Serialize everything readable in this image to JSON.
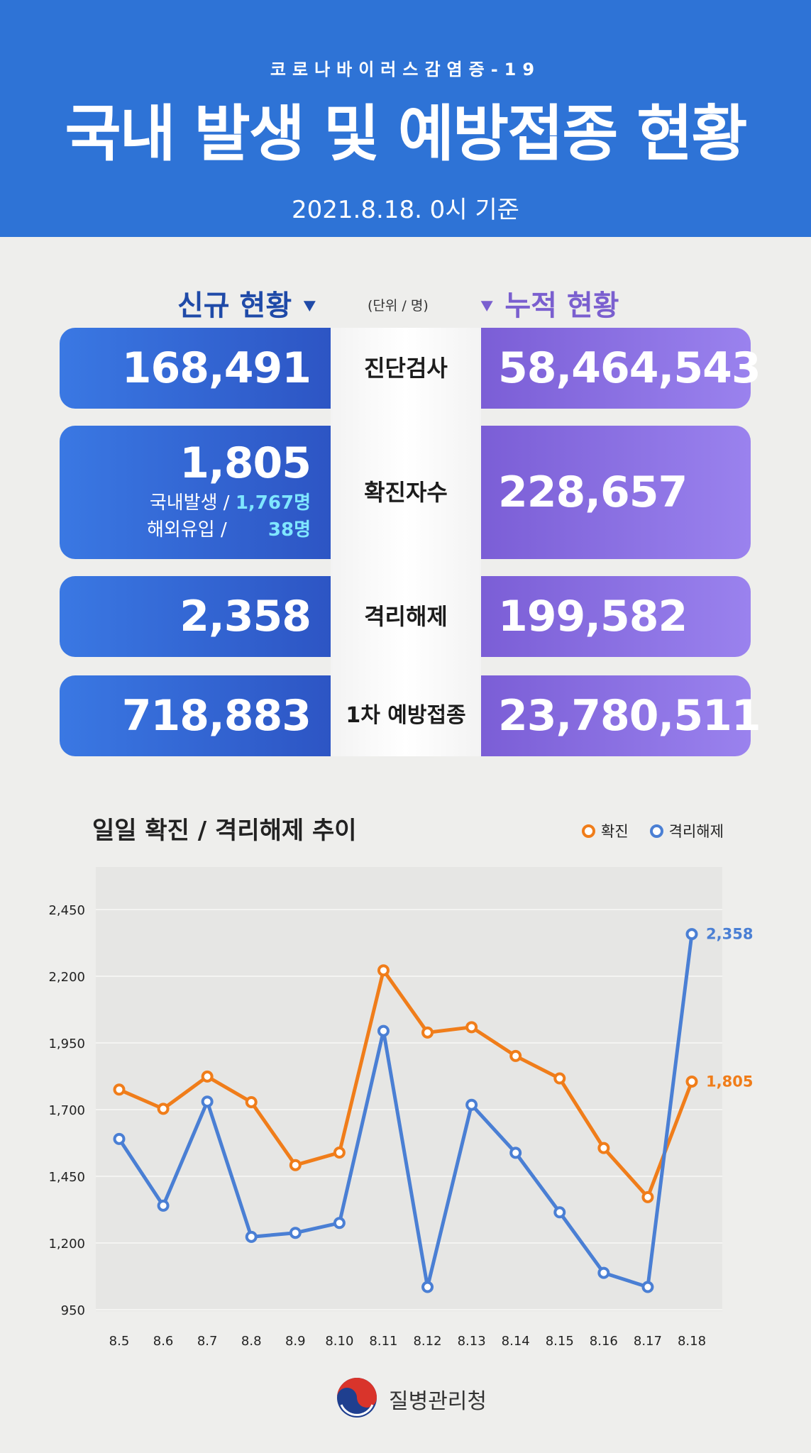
{
  "header": {
    "subtitle": "코로나바이러스감염증-19",
    "title": "국내 발생 및 예방접종 현황",
    "date": "2021.8.18. 0시 기준"
  },
  "sections": {
    "new_label": "신규 현황",
    "cumulative_label": "누적 현황",
    "unit": "(단위 / 명)"
  },
  "rows": [
    {
      "label": "진단검사",
      "new": "168,491",
      "cumulative": "58,464,543"
    },
    {
      "label": "확진자수",
      "new": "1,805",
      "cumulative": "228,657",
      "breakdown": [
        {
          "label": "국내발생 /",
          "value": "1,767명"
        },
        {
          "label": "해외유입 /",
          "value": "38명"
        }
      ]
    },
    {
      "label": "격리해제",
      "new": "2,358",
      "cumulative": "199,582"
    },
    {
      "label": "1차 예방접종",
      "new": "718,883",
      "cumulative": "23,780,511"
    }
  ],
  "chart_data": {
    "type": "line",
    "title": "일일 확진 / 격리해제 추이",
    "categories": [
      "8.5",
      "8.6",
      "8.7",
      "8.8",
      "8.9",
      "8.10",
      "8.11",
      "8.12",
      "8.13",
      "8.14",
      "8.15",
      "8.16",
      "8.17",
      "8.18"
    ],
    "ylim": [
      950,
      2450
    ],
    "yticks": [
      950,
      1200,
      1450,
      1700,
      1950,
      2200,
      2450
    ],
    "ytick_labels": [
      "950",
      "1,200",
      "1,450",
      "1,700",
      "1,950",
      "2,200",
      "2,450"
    ],
    "grid": true,
    "legend_position": "top-right",
    "series": [
      {
        "name": "확진",
        "color": "#f07d1a",
        "values": [
          1775,
          1703,
          1824,
          1728,
          1492,
          1539,
          2222,
          1989,
          2009,
          1901,
          1817,
          1556,
          1372,
          1805
        ],
        "end_label": "1,805"
      },
      {
        "name": "격리해제",
        "color": "#4a7fd4",
        "values": [
          1590,
          1340,
          1730,
          1223,
          1238,
          1275,
          1995,
          1035,
          1718,
          1538,
          1315,
          1088,
          1035,
          2358
        ],
        "end_label": "2,358"
      }
    ]
  },
  "footer": {
    "org": "질병관리청"
  }
}
